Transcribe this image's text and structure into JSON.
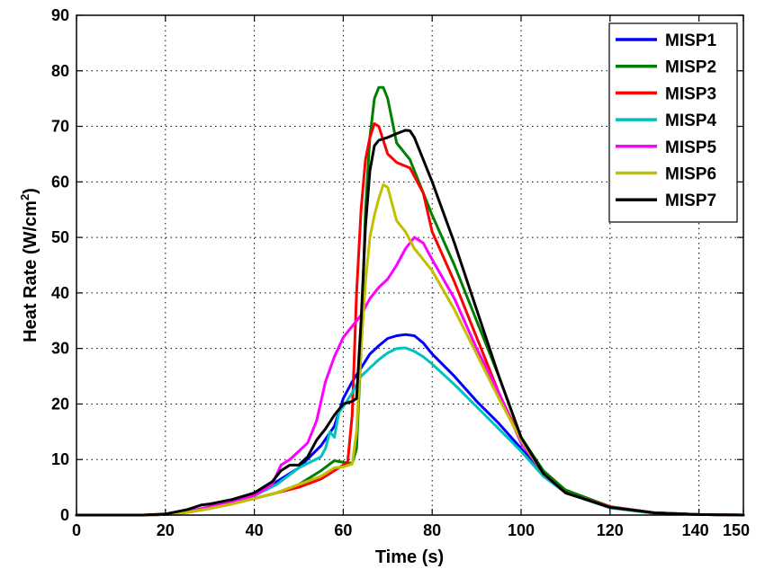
{
  "chart_data": {
    "type": "line",
    "xlabel": "Time (s)",
    "ylabel_main": "Heat Rate (W/cm",
    "ylabel_sup": "2",
    "ylabel_end": ")",
    "xlim": [
      0,
      150
    ],
    "ylim": [
      0,
      90
    ],
    "xticks": [
      0,
      20,
      40,
      60,
      80,
      100,
      120,
      140,
      150
    ],
    "yticks": [
      0,
      10,
      20,
      30,
      40,
      50,
      60,
      70,
      80,
      90
    ],
    "grid": true,
    "legend_position": "top-right",
    "series": [
      {
        "name": "MISP1",
        "color": "#0000ff",
        "x": [
          0,
          15,
          20,
          25,
          30,
          35,
          40,
          45,
          50,
          55,
          58,
          60,
          62,
          64,
          66,
          68,
          70,
          72,
          74,
          76,
          78,
          80,
          85,
          90,
          95,
          100,
          105,
          110,
          120,
          130,
          140,
          150
        ],
        "y": [
          0,
          0,
          0.1,
          0.6,
          1.5,
          2.5,
          4.0,
          6,
          8.5,
          12.5,
          16,
          21,
          24,
          26.5,
          29,
          30.5,
          31.8,
          32.3,
          32.5,
          32.3,
          31,
          29,
          25,
          20.5,
          16.5,
          12,
          7.5,
          4.5,
          1.5,
          0.4,
          0.1,
          0
        ]
      },
      {
        "name": "MISP2",
        "color": "#008000",
        "x": [
          0,
          15,
          20,
          25,
          30,
          35,
          40,
          45,
          50,
          55,
          58,
          60,
          62,
          63,
          64,
          65,
          66,
          67,
          68,
          69,
          70,
          72,
          75,
          78,
          80,
          85,
          90,
          95,
          100,
          105,
          110,
          120,
          130,
          140,
          150
        ],
        "y": [
          0,
          0,
          0.1,
          0.5,
          1.2,
          2.2,
          3.0,
          4,
          5.5,
          8,
          9.8,
          9.5,
          9.3,
          12,
          30,
          55,
          68,
          75,
          77,
          77,
          75,
          67,
          64,
          58,
          54,
          45,
          35,
          25,
          14,
          8,
          4.5,
          1.5,
          0.4,
          0.1,
          0
        ]
      },
      {
        "name": "MISP3",
        "color": "#ff0000",
        "x": [
          0,
          15,
          20,
          25,
          30,
          35,
          40,
          45,
          50,
          55,
          58,
          60,
          61,
          62,
          63,
          64,
          65,
          66,
          67,
          68,
          70,
          72,
          75,
          78,
          80,
          85,
          90,
          95,
          100,
          105,
          110,
          120,
          130,
          140,
          150
        ],
        "y": [
          0,
          0,
          0.1,
          0.5,
          1.2,
          2.0,
          3.0,
          4,
          5,
          6.5,
          8,
          9,
          9.5,
          18,
          40,
          55,
          64,
          68,
          70.5,
          70,
          65,
          63.5,
          62.5,
          58,
          51,
          42,
          32,
          22,
          13.5,
          7.5,
          4,
          1.5,
          0.4,
          0.1,
          0
        ]
      },
      {
        "name": "MISP4",
        "color": "#00c0c0",
        "x": [
          0,
          15,
          20,
          25,
          30,
          35,
          40,
          45,
          50,
          55,
          56,
          57,
          58,
          59,
          60,
          62,
          64,
          66,
          68,
          70,
          72,
          74,
          76,
          78,
          80,
          85,
          90,
          95,
          100,
          105,
          110,
          120,
          130,
          140,
          150
        ],
        "y": [
          0,
          0,
          0.1,
          0.6,
          1.5,
          2.5,
          3.5,
          5.5,
          8.5,
          10.5,
          12,
          15,
          14,
          18.5,
          19.5,
          22,
          25,
          26.5,
          28,
          29.2,
          30,
          30.1,
          29.5,
          28.5,
          27.2,
          23.5,
          19.5,
          15.5,
          11.5,
          7,
          4,
          1.3,
          0.3,
          0.1,
          0
        ]
      },
      {
        "name": "MISP5",
        "color": "#ff00ff",
        "x": [
          0,
          15,
          20,
          25,
          30,
          35,
          40,
          42,
          44,
          46,
          48,
          50,
          52,
          54,
          56,
          58,
          60,
          62,
          64,
          66,
          68,
          70,
          72,
          74,
          76,
          78,
          80,
          85,
          90,
          95,
          100,
          105,
          110,
          120,
          130,
          140,
          150
        ],
        "y": [
          0,
          0,
          0.1,
          0.6,
          1.5,
          2.5,
          3.5,
          4.5,
          5.5,
          9,
          10,
          11.5,
          13,
          17,
          24,
          28.5,
          32,
          34,
          36,
          39,
          41,
          42.5,
          45,
          48,
          50,
          49,
          46,
          39,
          30,
          22,
          13,
          7.5,
          4,
          1.4,
          0.4,
          0.1,
          0
        ]
      },
      {
        "name": "MISP6",
        "color": "#c0c000",
        "x": [
          0,
          15,
          20,
          25,
          30,
          35,
          40,
          45,
          50,
          55,
          58,
          60,
          62,
          63,
          64,
          65,
          66,
          67,
          68,
          69,
          70,
          72,
          74,
          76,
          78,
          80,
          85,
          90,
          95,
          100,
          105,
          110,
          120,
          130,
          140,
          150
        ],
        "y": [
          0,
          0,
          0.1,
          0.5,
          1.2,
          2.0,
          3.0,
          4,
          5.5,
          7,
          8.5,
          8.7,
          9.2,
          15,
          30,
          42,
          50,
          54,
          57,
          59.5,
          59,
          53,
          51,
          48,
          46,
          44,
          37,
          29,
          21,
          13.5,
          7.5,
          4,
          1.4,
          0.4,
          0.1,
          0
        ]
      },
      {
        "name": "MISP7",
        "color": "#000000",
        "x": [
          0,
          15,
          20,
          25,
          28,
          30,
          35,
          40,
          44,
          46,
          48,
          50,
          52,
          54,
          56,
          58,
          60,
          62,
          63,
          64,
          65,
          66,
          67,
          68,
          70,
          72,
          74,
          75,
          76,
          78,
          80,
          85,
          90,
          95,
          100,
          105,
          110,
          120,
          130,
          140,
          150
        ],
        "y": [
          0,
          0,
          0.2,
          1.0,
          1.8,
          2.0,
          2.8,
          4,
          6,
          8,
          9,
          9,
          10.5,
          13.5,
          15.5,
          18,
          20,
          20.5,
          21,
          35,
          52,
          62,
          66.5,
          67.5,
          68,
          68.7,
          69.3,
          69.2,
          68,
          64,
          60,
          49,
          37,
          25,
          14,
          7.5,
          4,
          1.4,
          0.4,
          0.1,
          0
        ]
      }
    ]
  }
}
